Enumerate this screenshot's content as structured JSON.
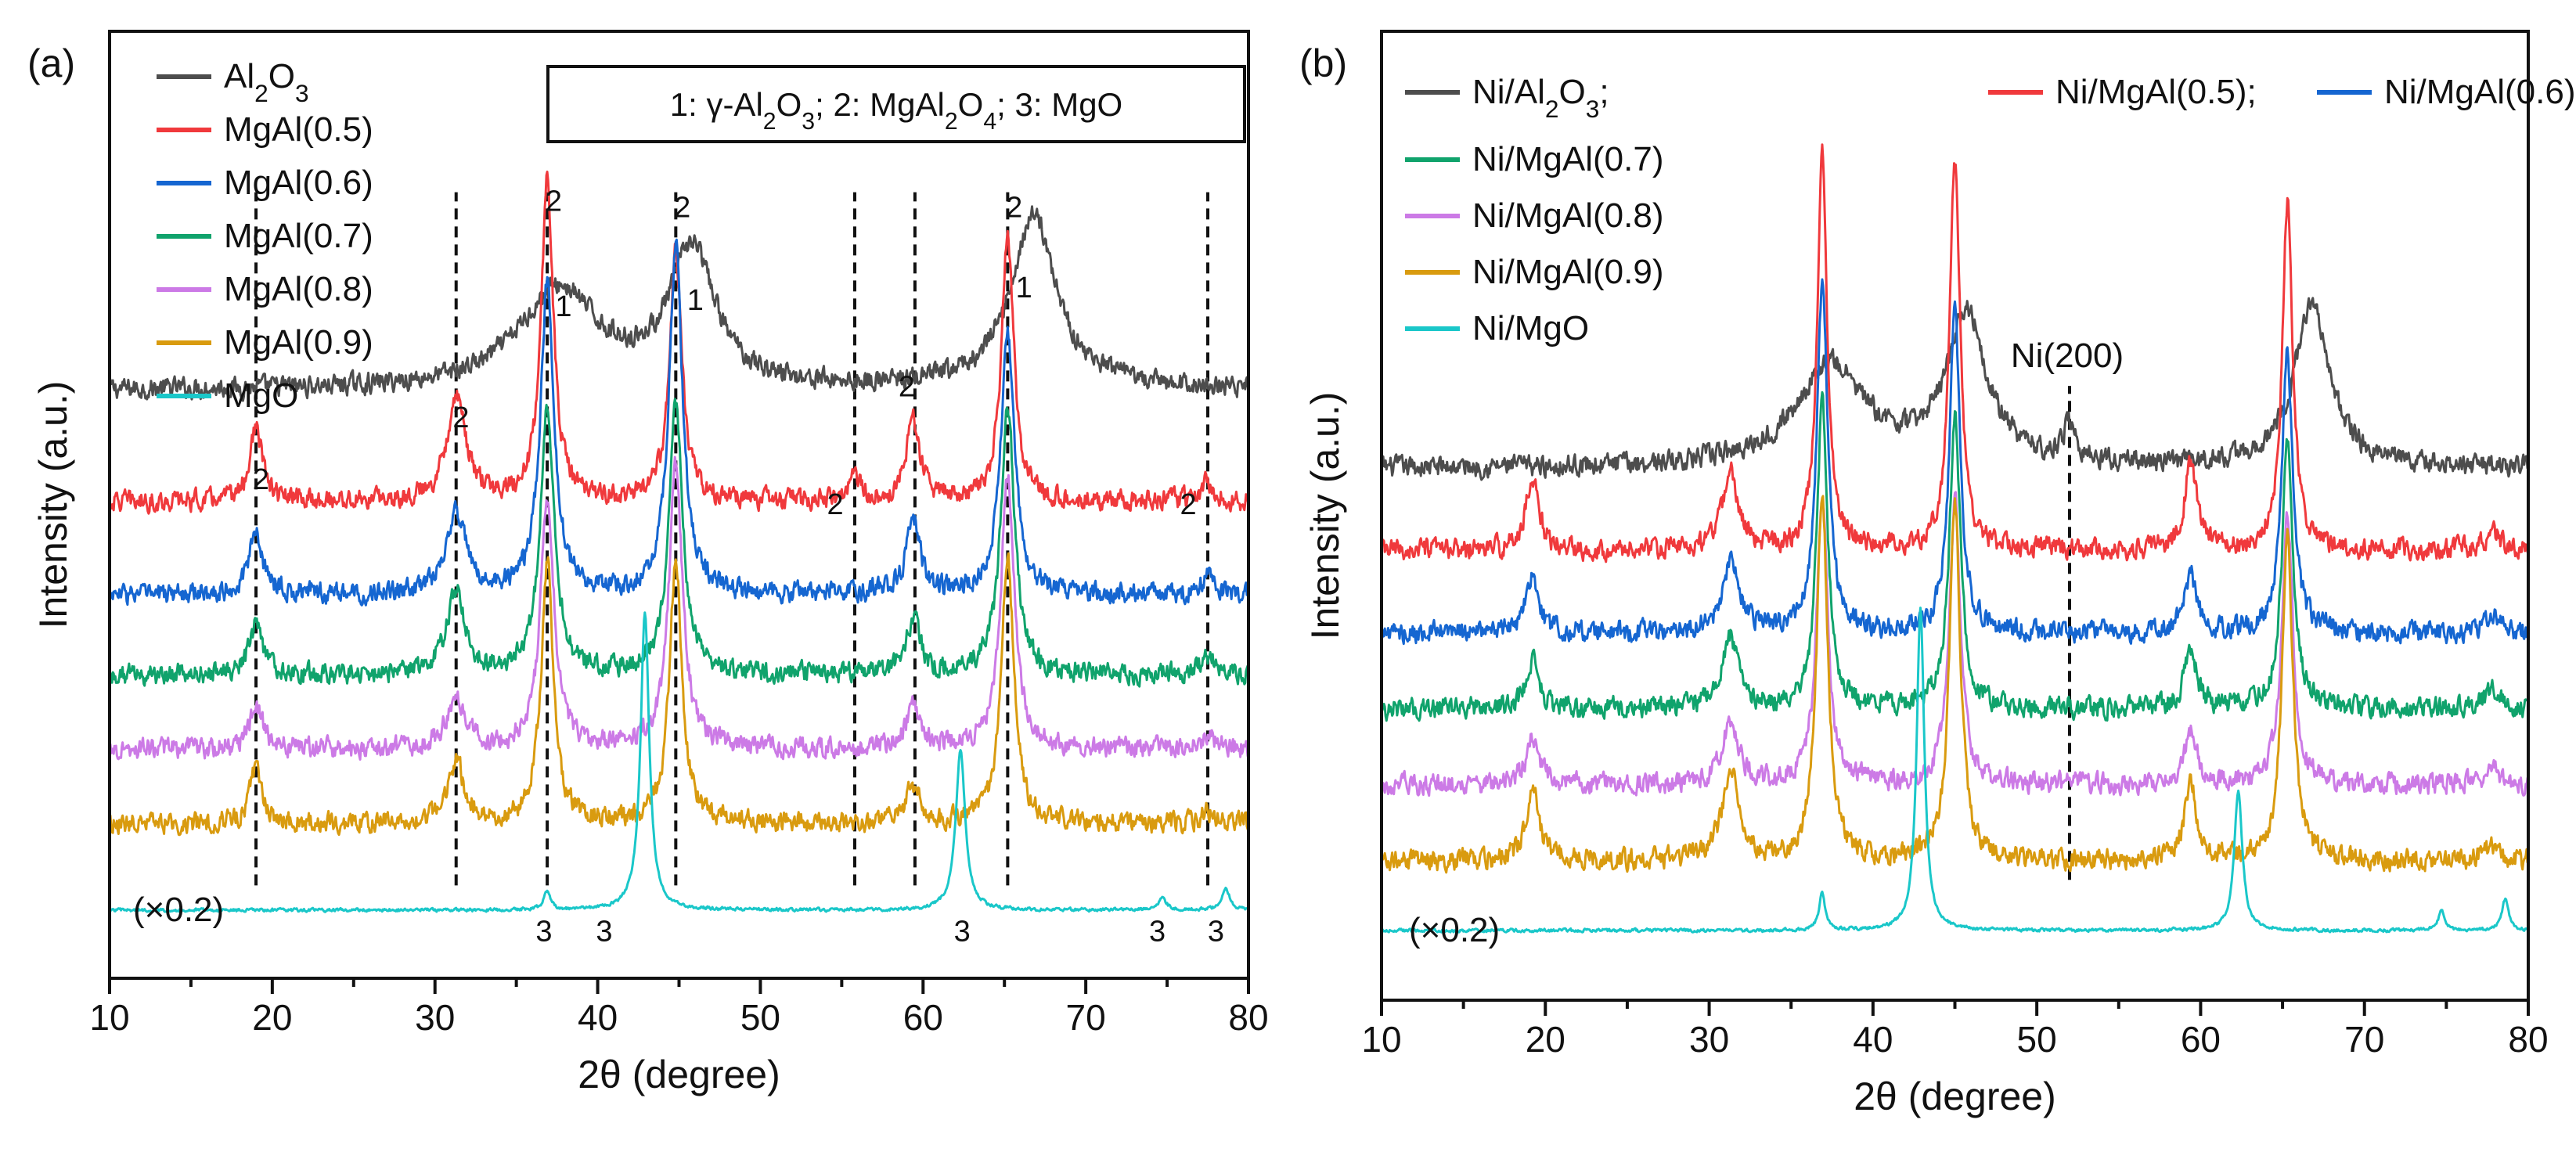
{
  "chart_data": [
    {
      "type": "line",
      "panel_label": "(a)",
      "xlabel": "2θ (degree)",
      "ylabel": "Intensity (a.u.)",
      "xlim": [
        10,
        80
      ],
      "xticks": [
        "10",
        "20",
        "30",
        "40",
        "50",
        "60",
        "70",
        "80"
      ],
      "phase_key": "1: γ-Al₂O₃; 2: MgAl₂O₄; 3: MgO",
      "scale_note": "(×0.2)",
      "series": [
        {
          "name": "Al₂O₃",
          "color": "#4d4d4d",
          "baseline": 8.4,
          "noise": 0.25,
          "peaks": [
            [
              37.6,
              1.6,
              3.0
            ],
            [
              45.8,
              2.2,
              1.7
            ],
            [
              66.8,
              2.8,
              1.7
            ]
          ]
        },
        {
          "name": "MgAl(0.5)",
          "color": "#f0393c",
          "baseline": 6.6,
          "noise": 0.25,
          "peaks": [
            [
              19.0,
              1.2,
              0.45
            ],
            [
              31.3,
              1.7,
              0.7
            ],
            [
              36.9,
              5.2,
              0.45
            ],
            [
              44.8,
              4.0,
              0.45
            ],
            [
              55.8,
              0.35,
              0.5
            ],
            [
              59.4,
              1.3,
              0.5
            ],
            [
              65.2,
              4.3,
              0.45
            ],
            [
              77.5,
              0.3,
              0.5
            ]
          ]
        },
        {
          "name": "MgAl(0.6)",
          "color": "#1566d1",
          "baseline": 5.1,
          "noise": 0.25,
          "peaks": [
            [
              19.0,
              1.0,
              0.5
            ],
            [
              31.3,
              1.3,
              0.7
            ],
            [
              36.9,
              5.0,
              0.5
            ],
            [
              44.8,
              5.6,
              0.5
            ],
            [
              59.4,
              1.2,
              0.5
            ],
            [
              65.2,
              4.2,
              0.5
            ],
            [
              77.5,
              0.3,
              0.5
            ]
          ]
        },
        {
          "name": "MgAl(0.7)",
          "color": "#10a36c",
          "baseline": 3.8,
          "noise": 0.25,
          "peaks": [
            [
              19.0,
              0.8,
              0.5
            ],
            [
              31.3,
              1.3,
              0.7
            ],
            [
              36.9,
              4.4,
              0.5
            ],
            [
              44.8,
              4.4,
              0.5
            ],
            [
              59.4,
              0.9,
              0.5
            ],
            [
              65.2,
              4.4,
              0.5
            ],
            [
              77.5,
              0.3,
              0.5
            ]
          ]
        },
        {
          "name": "MgAl(0.8)",
          "color": "#cc7ae6",
          "baseline": 2.6,
          "noise": 0.25,
          "peaks": [
            [
              19.0,
              0.7,
              0.5
            ],
            [
              31.3,
              0.8,
              0.7
            ],
            [
              36.9,
              4.0,
              0.5
            ],
            [
              44.8,
              4.6,
              0.5
            ],
            [
              59.4,
              0.7,
              0.5
            ],
            [
              65.2,
              4.4,
              0.5
            ],
            [
              77.5,
              0.25,
              0.5
            ]
          ]
        },
        {
          "name": "MgAl(0.9)",
          "color": "#d99b0f",
          "baseline": 1.4,
          "noise": 0.25,
          "peaks": [
            [
              19.0,
              0.9,
              0.45
            ],
            [
              31.3,
              1.0,
              0.6
            ],
            [
              36.9,
              4.2,
              0.45
            ],
            [
              44.8,
              4.3,
              0.45
            ],
            [
              59.4,
              0.6,
              0.5
            ],
            [
              65.2,
              4.4,
              0.45
            ],
            [
              77.5,
              0.2,
              0.5
            ]
          ]
        },
        {
          "name": "MgO",
          "color": "#1ac7c9",
          "baseline": 0.0,
          "noise": 0.04,
          "peaks": [
            [
              36.9,
              0.3,
              0.25
            ],
            [
              42.9,
              4.8,
              0.32
            ],
            [
              62.3,
              2.6,
              0.35
            ],
            [
              74.7,
              0.2,
              0.3
            ],
            [
              78.6,
              0.35,
              0.3
            ]
          ]
        }
      ],
      "dashed_lines": [
        19.0,
        31.3,
        36.9,
        44.8,
        55.8,
        59.5,
        65.2,
        77.5
      ],
      "peak_labels": [
        {
          "x": 19.3,
          "y": 6.8,
          "text": "2"
        },
        {
          "x": 31.6,
          "y": 7.8,
          "text": "2"
        },
        {
          "x": 37.3,
          "y": 11.3,
          "text": "2"
        },
        {
          "x": 37.9,
          "y": 9.6,
          "text": "1"
        },
        {
          "x": 45.2,
          "y": 11.2,
          "text": "2"
        },
        {
          "x": 46.0,
          "y": 9.7,
          "text": "1"
        },
        {
          "x": 54.6,
          "y": 6.4,
          "text": "2"
        },
        {
          "x": 59.0,
          "y": 8.3,
          "text": "2"
        },
        {
          "x": 65.6,
          "y": 11.2,
          "text": "2"
        },
        {
          "x": 66.2,
          "y": 9.9,
          "text": "1"
        },
        {
          "x": 76.3,
          "y": 6.4,
          "text": "2"
        },
        {
          "x": 36.7,
          "y": -0.5,
          "text": "3"
        },
        {
          "x": 40.4,
          "y": -0.5,
          "text": "3"
        },
        {
          "x": 62.4,
          "y": -0.5,
          "text": "3"
        },
        {
          "x": 74.4,
          "y": -0.5,
          "text": "3"
        },
        {
          "x": 78.0,
          "y": -0.5,
          "text": "3"
        }
      ]
    },
    {
      "type": "line",
      "panel_label": "(b)",
      "xlabel": "2θ (degree)",
      "ylabel": "Intensity (a.u.)",
      "xlim": [
        10,
        80
      ],
      "xticks": [
        "10",
        "20",
        "30",
        "40",
        "50",
        "60",
        "70",
        "80"
      ],
      "scale_note": "(×0.2)",
      "ni_label": "Ni(200)",
      "ni_line": 52.0,
      "series": [
        {
          "name": "Ni/Al₂O₃;",
          "color": "#4d4d4d",
          "baseline": 7.3,
          "noise": 0.25,
          "peaks": [
            [
              37.4,
              1.6,
              2.6
            ],
            [
              45.7,
              2.4,
              1.5
            ],
            [
              52.0,
              0.6,
              0.4
            ],
            [
              66.8,
              2.6,
              1.3
            ]
          ]
        },
        {
          "name": "Ni/MgAl(0.5);",
          "color": "#f0393c",
          "baseline": 6.0,
          "noise": 0.25,
          "peaks": [
            [
              19.2,
              1.2,
              0.45
            ],
            [
              31.3,
              1.2,
              0.6
            ],
            [
              36.9,
              6.4,
              0.35
            ],
            [
              45.0,
              6.2,
              0.38
            ],
            [
              59.4,
              1.4,
              0.45
            ],
            [
              65.3,
              5.5,
              0.38
            ],
            [
              77.8,
              0.3,
              0.5
            ]
          ]
        },
        {
          "name": "Ni/MgAl(0.6)",
          "color": "#1566d1",
          "baseline": 4.7,
          "noise": 0.25,
          "peaks": [
            [
              19.2,
              0.9,
              0.45
            ],
            [
              31.3,
              1.1,
              0.6
            ],
            [
              36.9,
              5.5,
              0.4
            ],
            [
              45.0,
              5.0,
              0.4
            ],
            [
              59.4,
              0.9,
              0.45
            ],
            [
              65.3,
              4.4,
              0.4
            ],
            [
              77.8,
              0.3,
              0.5
            ]
          ]
        },
        {
          "name": "Ni/MgAl(0.7)",
          "color": "#10a36c",
          "baseline": 3.5,
          "noise": 0.25,
          "peaks": [
            [
              19.2,
              0.8,
              0.45
            ],
            [
              31.3,
              1.1,
              0.6
            ],
            [
              36.9,
              4.8,
              0.4
            ],
            [
              45.0,
              4.6,
              0.4
            ],
            [
              59.4,
              0.9,
              0.45
            ],
            [
              65.3,
              4.2,
              0.4
            ],
            [
              77.8,
              0.3,
              0.5
            ]
          ]
        },
        {
          "name": "Ni/MgAl(0.8)",
          "color": "#cc7ae6",
          "baseline": 2.3,
          "noise": 0.25,
          "peaks": [
            [
              19.2,
              0.8,
              0.45
            ],
            [
              31.3,
              1.0,
              0.6
            ],
            [
              36.9,
              4.6,
              0.4
            ],
            [
              45.0,
              4.5,
              0.4
            ],
            [
              59.4,
              0.8,
              0.45
            ],
            [
              65.3,
              4.3,
              0.4
            ],
            [
              77.8,
              0.25,
              0.5
            ]
          ]
        },
        {
          "name": "Ni/MgAl(0.9)",
          "color": "#d99b0f",
          "baseline": 1.1,
          "noise": 0.25,
          "peaks": [
            [
              19.2,
              1.2,
              0.45
            ],
            [
              31.3,
              1.4,
              0.6
            ],
            [
              36.9,
              5.8,
              0.4
            ],
            [
              45.0,
              5.7,
              0.4
            ],
            [
              59.4,
              1.2,
              0.45
            ],
            [
              65.3,
              5.1,
              0.4
            ],
            [
              77.8,
              0.25,
              0.5
            ]
          ]
        },
        {
          "name": "Ni/MgO",
          "color": "#1ac7c9",
          "baseline": 0.0,
          "noise": 0.04,
          "peaks": [
            [
              36.9,
              0.6,
              0.22
            ],
            [
              42.9,
              5.1,
              0.28
            ],
            [
              62.3,
              2.2,
              0.3
            ],
            [
              74.7,
              0.3,
              0.25
            ],
            [
              78.6,
              0.5,
              0.25
            ]
          ]
        }
      ]
    }
  ]
}
